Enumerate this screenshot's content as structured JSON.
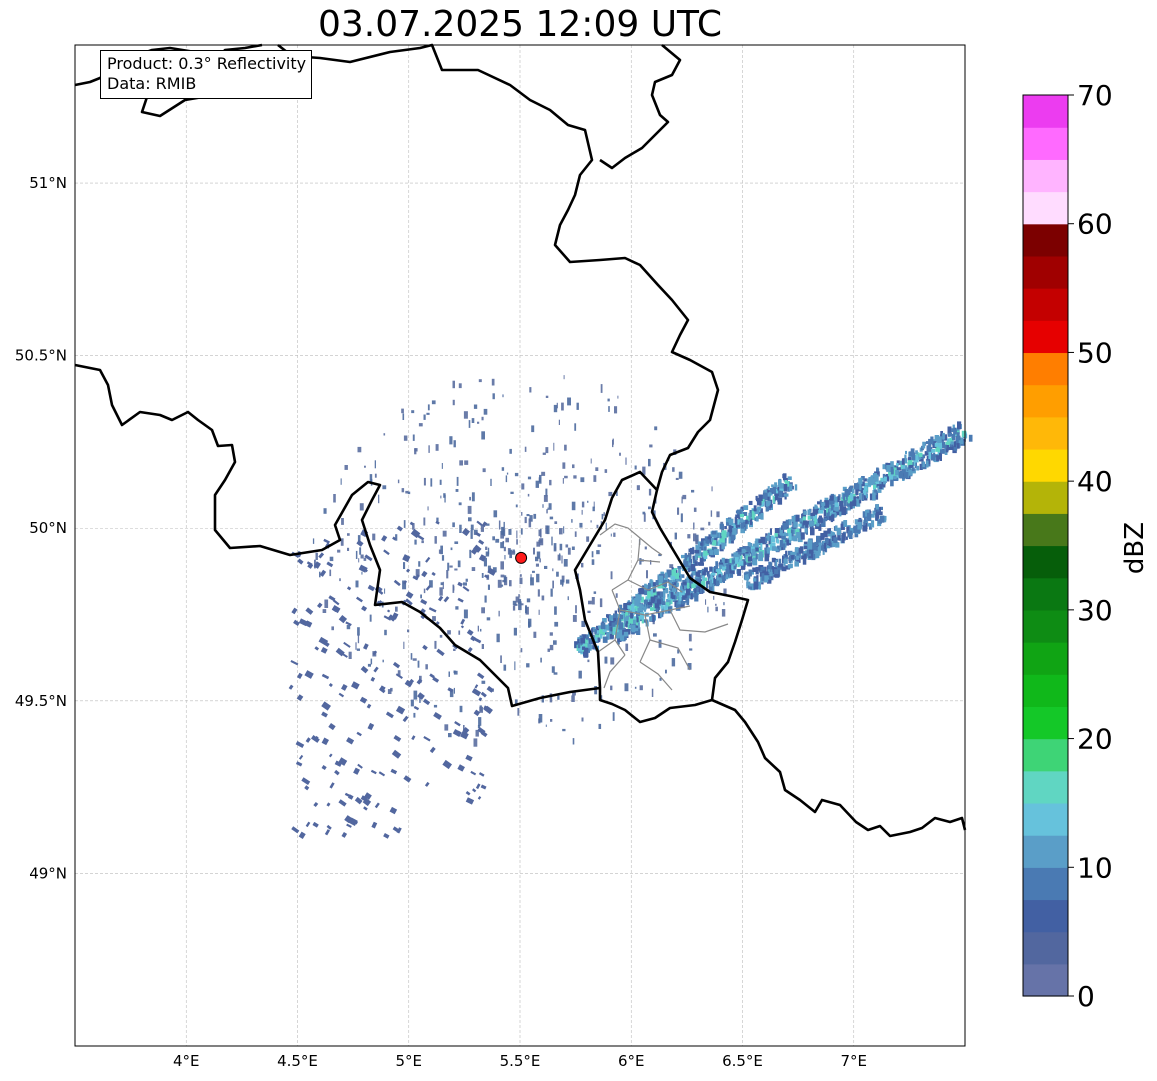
{
  "title": "03.07.2025 12:09 UTC",
  "info_box": {
    "product": "Product: 0.3° Reflectivity",
    "data": "Data: RMIB"
  },
  "map": {
    "lon_range": [
      3.5,
      7.5
    ],
    "lat_range": [
      48.5,
      51.4
    ],
    "lon_ticks": [
      {
        "value": 4.0,
        "label": "4°E"
      },
      {
        "value": 4.5,
        "label": "4.5°E"
      },
      {
        "value": 5.0,
        "label": "5°E"
      },
      {
        "value": 5.5,
        "label": "5.5°E"
      },
      {
        "value": 6.0,
        "label": "6°E"
      },
      {
        "value": 6.5,
        "label": "6.5°E"
      },
      {
        "value": 7.0,
        "label": "7°E"
      }
    ],
    "lat_ticks": [
      {
        "value": 49.0,
        "label": "49°N"
      },
      {
        "value": 49.5,
        "label": "49.5°N"
      },
      {
        "value": 50.0,
        "label": "50°N"
      },
      {
        "value": 50.5,
        "label": "50.5°N"
      },
      {
        "value": 51.0,
        "label": "51°N"
      }
    ],
    "grid": true,
    "radar_site": {
      "lon": 5.505,
      "lat": 49.914,
      "color": "#ff1a1a"
    }
  },
  "colorbar": {
    "label": "dBZ",
    "min": 0,
    "max": 70,
    "ticks": [
      "0",
      "10",
      "20",
      "30",
      "40",
      "50",
      "60",
      "70"
    ],
    "colors": [
      "#6673a8",
      "#52679f",
      "#4260a3",
      "#4a7ab3",
      "#5a9ec8",
      "#66c2dc",
      "#60d6c2",
      "#3ed476",
      "#14c828",
      "#10b81a",
      "#10a414",
      "#0e8c14",
      "#0a7812",
      "#065e0a",
      "#48781a",
      "#b4b408",
      "#ffd800",
      "#ffb808",
      "#ff9e00",
      "#ff7e00",
      "#e60000",
      "#c40000",
      "#a00000",
      "#7c0000",
      "#ffdcff",
      "#ffb4ff",
      "#ff6aff",
      "#ec3cf0"
    ]
  }
}
